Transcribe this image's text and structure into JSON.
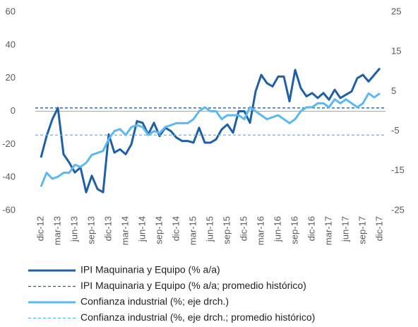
{
  "chart_data": {
    "type": "line",
    "categories": [
      "dic-12",
      null,
      null,
      "mar-13",
      null,
      null,
      "jun-13",
      null,
      null,
      "sep-13",
      null,
      null,
      "dic-13",
      null,
      null,
      "mar-14",
      null,
      null,
      "jun-14",
      null,
      null,
      "sep-14",
      null,
      null,
      "dic-14",
      null,
      null,
      "mar-15",
      null,
      null,
      "jun-15",
      null,
      null,
      "sep-15",
      null,
      null,
      "dic-15",
      null,
      null,
      "mar-16",
      null,
      null,
      "jun-16",
      null,
      null,
      "sep-16",
      null,
      null,
      "dic-16",
      null,
      null,
      "mar-17",
      null,
      null,
      "jun-17",
      null,
      null,
      "sep-17",
      null,
      null,
      "dic-17"
    ],
    "ylim": [
      -60,
      60
    ],
    "yticks": [
      -60,
      -40,
      -20,
      0,
      20,
      40,
      60
    ],
    "y2lim": [
      -25,
      25
    ],
    "y2ticks": [
      -25,
      -15,
      -5,
      5,
      15,
      25
    ],
    "grid": false,
    "legend": "bottom",
    "series": [
      {
        "name": "IPI Maquinaria y Equipo (% a/a)",
        "color": "#1f5fa8",
        "axis": "y",
        "values": [
          -28,
          -15,
          -5,
          2,
          -26,
          -31,
          -37,
          -34,
          -49,
          -39,
          -47,
          -49,
          -14,
          -25,
          -23,
          -26,
          -20,
          -6,
          -7,
          -14,
          -7,
          -15,
          -10,
          -12,
          -16,
          -18,
          -18,
          -19,
          -10,
          -19,
          -19,
          -17,
          -11,
          -8,
          -13,
          0,
          0,
          -7,
          12,
          22,
          17,
          15,
          21,
          21,
          6,
          25,
          14,
          9,
          11,
          8,
          11,
          7,
          13,
          8,
          10,
          12,
          20,
          22,
          18,
          22,
          26
        ]
      },
      {
        "name": "IPI Maquinaria y Equipo (% a/a; promedio histórico)",
        "color": "#1f5fa8",
        "axis": "y",
        "style": "dashed",
        "value": 2
      },
      {
        "name": "Confianza industrial (%; eje drch.)",
        "color": "#5bb8f0",
        "axis": "y2",
        "values": [
          -19,
          -15.5,
          -17,
          -16.5,
          -15.5,
          -15.5,
          -13.5,
          -14,
          -13,
          -11,
          -10.5,
          -10,
          -7,
          -5,
          -4.5,
          -6,
          -4,
          -3.5,
          -4,
          -6,
          -5,
          -5.5,
          -4,
          -3.5,
          -3,
          -3,
          -3,
          -2,
          0,
          1,
          0,
          0,
          -2,
          -1,
          -1,
          -1,
          -2,
          1,
          0,
          -1,
          -2,
          -1.5,
          -1,
          -2,
          -3,
          -2,
          0,
          1,
          1,
          2,
          2,
          1,
          3,
          2,
          3,
          2,
          1,
          2,
          4.5,
          3.5,
          4.5
        ]
      },
      {
        "name": "Confianza industrial (%, eje drch.; promedio histórico)",
        "color": "#5bb8f0",
        "axis": "y2",
        "style": "dashed",
        "value": -6
      }
    ]
  }
}
